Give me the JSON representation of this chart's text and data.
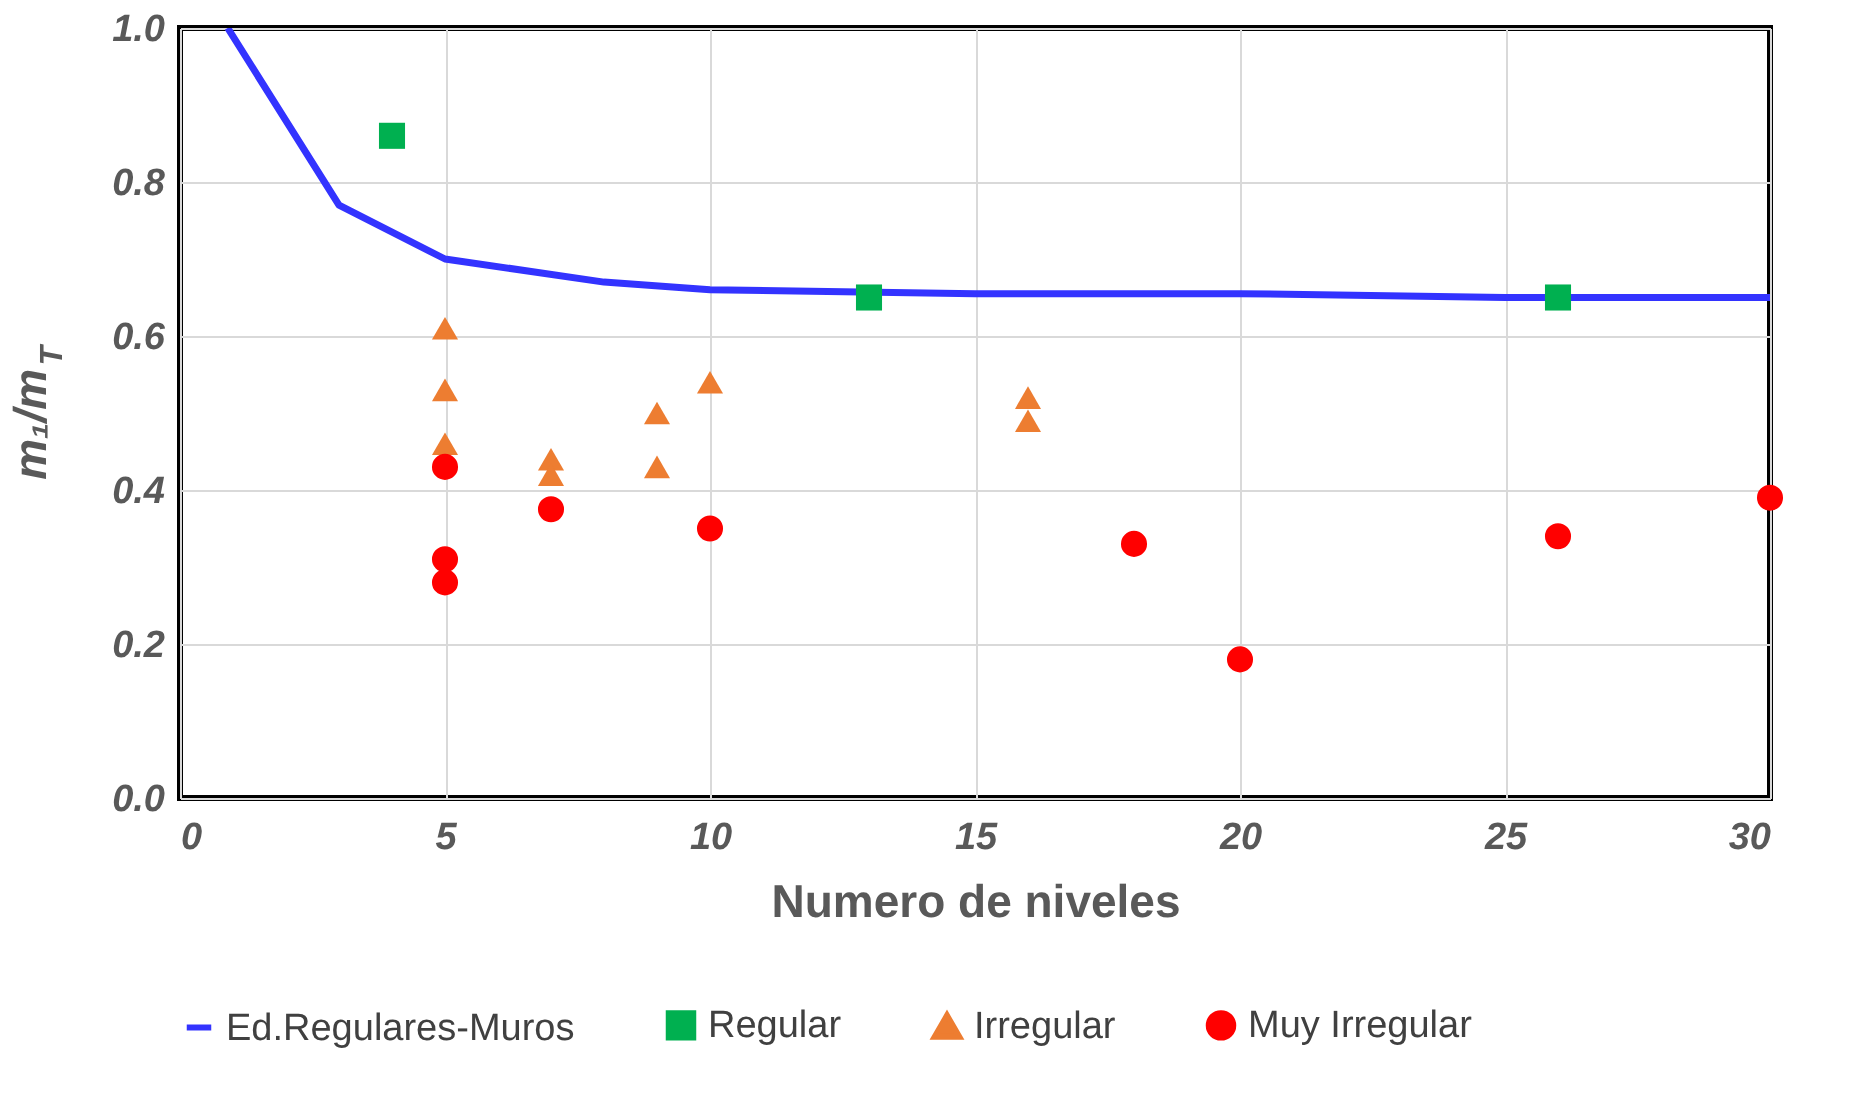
{
  "chart_data": {
    "type": "scatter",
    "xlabel": "Numero de niveles",
    "ylabel": "m₁/m$_{T}$",
    "xlim": [
      0,
      30
    ],
    "xticks": [
      0,
      5,
      10,
      15,
      20,
      25,
      30
    ],
    "ylim": [
      0,
      1.0
    ],
    "yticks": [
      {
        "value": 0,
        "label": "0.0"
      },
      {
        "value": 0.2,
        "label": "0.2"
      },
      {
        "value": 0.4,
        "label": "0.4"
      },
      {
        "value": 0.6,
        "label": "0.6"
      },
      {
        "value": 0.8,
        "label": "0.8"
      },
      {
        "value": 1.0,
        "label": "1.0"
      }
    ],
    "grid": true,
    "legend": "bottom",
    "series": [
      {
        "name": "Ed.Regulares-Muros",
        "type": "line",
        "color": "#3333ff",
        "marker": "none",
        "line_style": "solid",
        "x": [
          0.9,
          3,
          5,
          8,
          10,
          15,
          20,
          25,
          30
        ],
        "values": [
          1.0,
          0.77,
          0.7,
          0.67,
          0.66,
          0.655,
          0.655,
          0.65,
          0.65
        ]
      },
      {
        "name": "Regular",
        "color": "#00b050",
        "marker": "square",
        "x": [
          4,
          13,
          26
        ],
        "values": [
          0.86,
          0.65,
          0.65
        ]
      },
      {
        "name": "Irregular",
        "color": "#ed7d31",
        "marker": "triangle",
        "x": [
          5,
          5,
          5,
          7,
          7,
          9,
          9,
          10,
          16,
          16
        ],
        "values": [
          0.61,
          0.53,
          0.46,
          0.44,
          0.42,
          0.5,
          0.43,
          0.54,
          0.52,
          0.49
        ]
      },
      {
        "name": "Muy Irregular",
        "color": "#ff0000",
        "marker": "circle",
        "x": [
          5,
          5,
          5,
          7,
          10,
          18,
          20,
          26,
          30
        ],
        "values": [
          0.43,
          0.31,
          0.28,
          0.375,
          0.35,
          0.33,
          0.18,
          0.34,
          0.39
        ]
      }
    ]
  }
}
